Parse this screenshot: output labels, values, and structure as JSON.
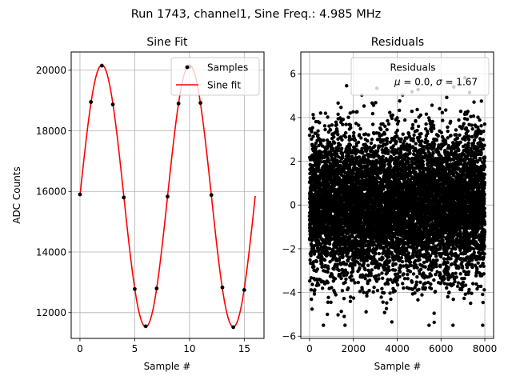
{
  "figure": {
    "suptitle": "Run 1743, channel1, Sine Freq.: 4.985 MHz"
  },
  "colors": {
    "samples": "#000000",
    "fit": "#ff0000",
    "grid": "#b0b0b0"
  },
  "chart_data": [
    {
      "type": "scatter",
      "title": "Sine Fit",
      "xlabel": "Sample #",
      "ylabel": "ADC Counts",
      "xlim": [
        -0.8,
        16.8
      ],
      "ylim": [
        11150,
        20600
      ],
      "xticks": [
        0,
        5,
        10,
        15
      ],
      "yticks": [
        12000,
        14000,
        16000,
        18000,
        20000
      ],
      "grid": true,
      "legend": {
        "position": "upper right",
        "entries": [
          "Samples",
          "Sine fit"
        ]
      },
      "series": [
        {
          "name": "Samples",
          "kind": "scatter",
          "x": [
            0,
            1,
            2,
            3,
            4,
            5,
            6,
            7,
            8,
            9,
            10,
            11,
            12,
            13,
            14,
            15
          ],
          "y": [
            15900,
            18950,
            20150,
            18870,
            15800,
            12780,
            11550,
            12800,
            15830,
            18900,
            20100,
            18920,
            15880,
            12830,
            11520,
            12750
          ]
        },
        {
          "name": "Sine fit",
          "kind": "line",
          "model": {
            "offset": 15850,
            "amplitude": 4320,
            "period_samples": 8.0,
            "phase_rad": 0.0,
            "x_start": 0,
            "x_end": 16
          }
        }
      ]
    },
    {
      "type": "scatter",
      "title": "Residuals",
      "xlabel": "Sample #",
      "ylabel": "",
      "xlim": [
        -400,
        8400
      ],
      "ylim": [
        -6.1,
        7.0
      ],
      "xticks": [
        0,
        2000,
        4000,
        6000,
        8000
      ],
      "yticks": [
        -6,
        -4,
        -2,
        0,
        2,
        4,
        6
      ],
      "grid": true,
      "legend": {
        "position": "upper right",
        "entries": [
          "Residuals",
          "$\\mu$ = 0.0, $\\sigma$ = 1.67"
        ]
      },
      "series": [
        {
          "name": "Residuals",
          "kind": "scatter",
          "n_points": 8000,
          "mean": 0.0,
          "std": 1.67
        }
      ]
    }
  ]
}
